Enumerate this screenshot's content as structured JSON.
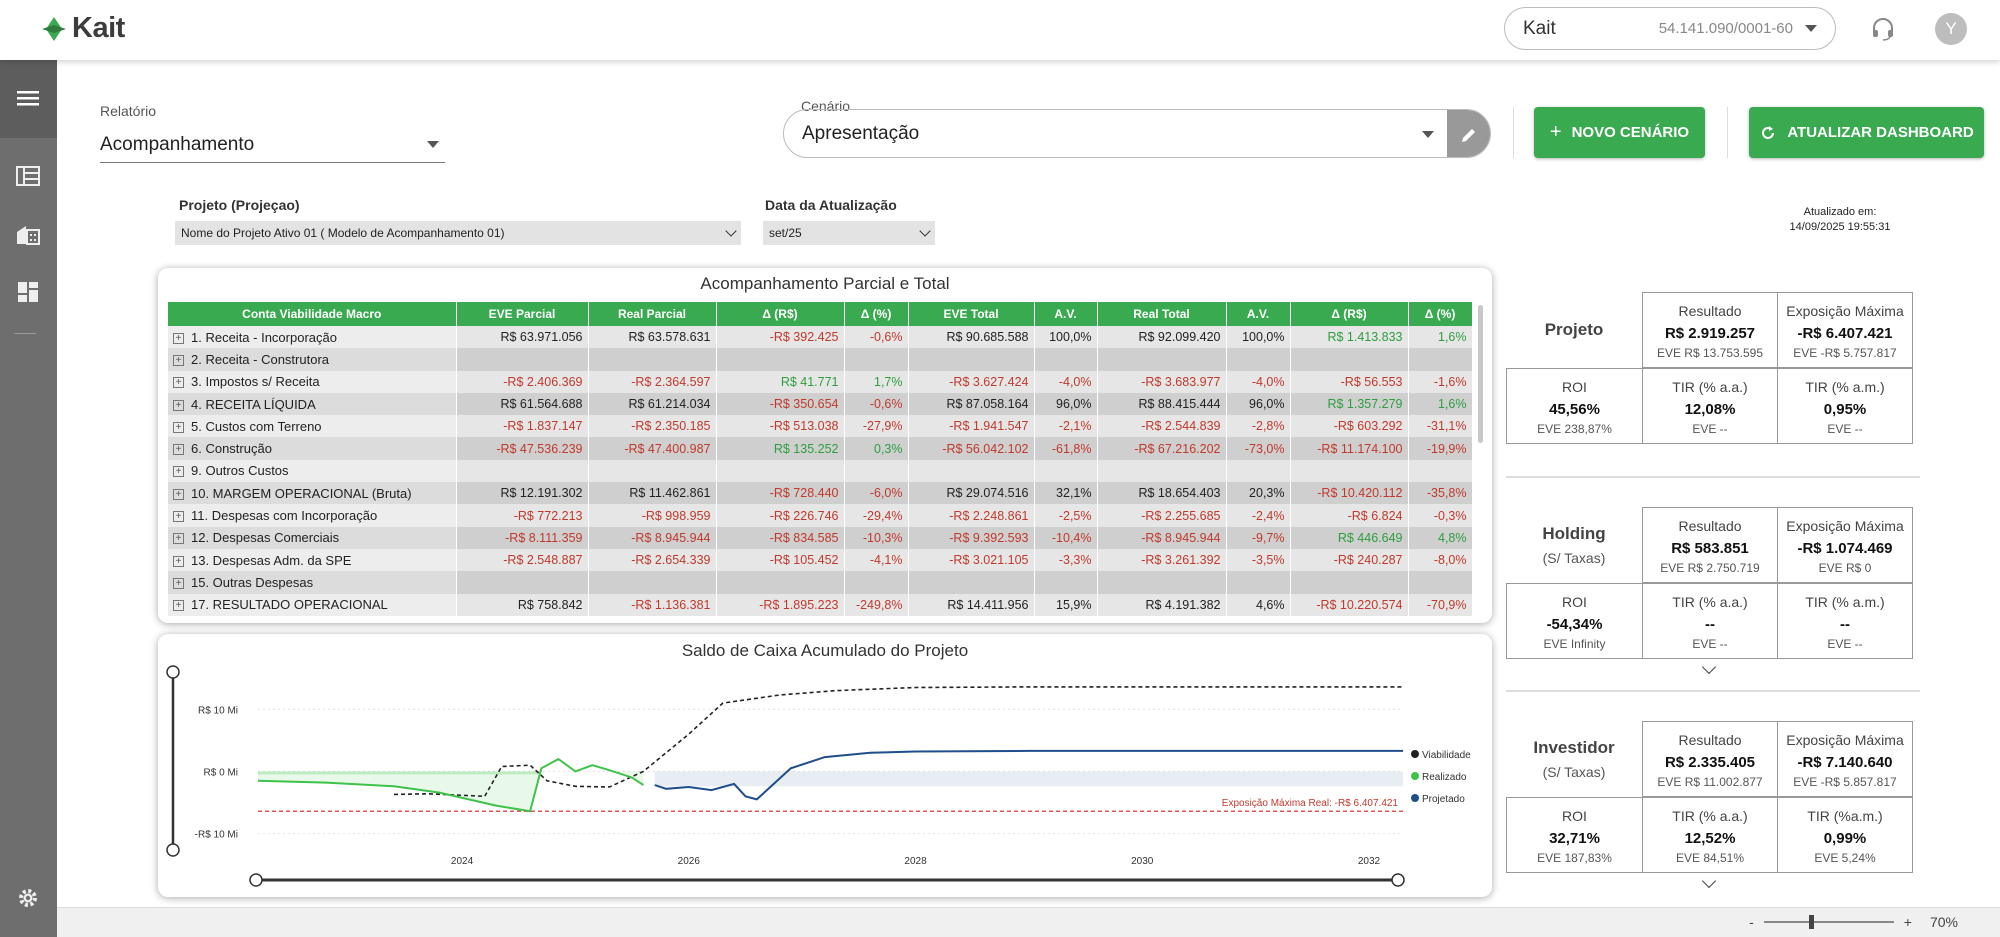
{
  "header": {
    "logo": "Kait",
    "company_name": "Kait",
    "company_cnpj": "54.141.090/0001-60",
    "avatar_initial": "Y"
  },
  "filters": {
    "report_label": "Relatório",
    "report_value": "Acompanhamento",
    "scenario_label": "Cenário",
    "scenario_value": "Apresentação",
    "new_scenario_button": "NOVO CENÁRIO",
    "refresh_button": "ATUALIZAR DASHBOARD",
    "project_label": "Projeto (Projeçao)",
    "project_value": "Nome do Projeto Ativo 01 ( Modelo de Acompanhamento 01)",
    "date_label": "Data da Atualização",
    "date_value": "set/25",
    "updated_label": "Atualizado em:",
    "updated_value": "14/09/2025 19:55:31"
  },
  "table": {
    "title": "Acompanhamento Parcial e Total",
    "columns": [
      "Conta Viabilidade Macro",
      "EVE Parcial",
      "Real Parcial",
      "Δ (R$)",
      "Δ (%)",
      "EVE Total",
      "A.V.",
      "Real Total",
      "A.V.",
      "Δ (R$)",
      "Δ (%)"
    ],
    "rows": [
      {
        "label": "1. Receita - Incorporação",
        "cells": [
          "R$ 63.971.056",
          "R$ 63.578.631",
          "-R$ 392.425",
          "-0,6%",
          "R$ 90.685.588",
          "100,0%",
          "R$ 92.099.420",
          "100,0%",
          "R$ 1.413.833",
          "1,6%"
        ]
      },
      {
        "label": "2. Receita - Construtora",
        "cells": [
          "",
          "",
          "",
          "",
          "",
          "",
          "",
          "",
          "",
          ""
        ]
      },
      {
        "label": "3. Impostos s/ Receita",
        "cells": [
          "-R$ 2.406.369",
          "-R$ 2.364.597",
          "R$ 41.771",
          "1,7%",
          "-R$ 3.627.424",
          "-4,0%",
          "-R$ 3.683.977",
          "-4,0%",
          "-R$ 56.553",
          "-1,6%"
        ]
      },
      {
        "label": "4. RECEITA LÍQUIDA",
        "cells": [
          "R$ 61.564.688",
          "R$ 61.214.034",
          "-R$ 350.654",
          "-0,6%",
          "R$ 87.058.164",
          "96,0%",
          "R$ 88.415.444",
          "96,0%",
          "R$ 1.357.279",
          "1,6%"
        ]
      },
      {
        "label": "5. Custos com Terreno",
        "cells": [
          "-R$ 1.837.147",
          "-R$ 2.350.185",
          "-R$ 513.038",
          "-27,9%",
          "-R$ 1.941.547",
          "-2,1%",
          "-R$ 2.544.839",
          "-2,8%",
          "-R$ 603.292",
          "-31,1%"
        ]
      },
      {
        "label": "6. Construção",
        "cells": [
          "-R$ 47.536.239",
          "-R$ 47.400.987",
          "R$ 135.252",
          "0,3%",
          "-R$ 56.042.102",
          "-61,8%",
          "-R$ 67.216.202",
          "-73,0%",
          "-R$ 11.174.100",
          "-19,9%"
        ]
      },
      {
        "label": "9. Outros Custos",
        "cells": [
          "",
          "",
          "",
          "",
          "",
          "",
          "",
          "",
          "",
          ""
        ]
      },
      {
        "label": "10. MARGEM OPERACIONAL (Bruta)",
        "cells": [
          "R$ 12.191.302",
          "R$ 11.462.861",
          "-R$ 728.440",
          "-6,0%",
          "R$ 29.074.516",
          "32,1%",
          "R$ 18.654.403",
          "20,3%",
          "-R$ 10.420.112",
          "-35,8%"
        ]
      },
      {
        "label": "11. Despesas com Incorporação",
        "cells": [
          "-R$ 772.213",
          "-R$ 998.959",
          "-R$ 226.746",
          "-29,4%",
          "-R$ 2.248.861",
          "-2,5%",
          "-R$ 2.255.685",
          "-2,4%",
          "-R$ 6.824",
          "-0,3%"
        ]
      },
      {
        "label": "12. Despesas Comerciais",
        "cells": [
          "-R$ 8.111.359",
          "-R$ 8.945.944",
          "-R$ 834.585",
          "-10,3%",
          "-R$ 9.392.593",
          "-10,4%",
          "-R$ 8.945.944",
          "-9,7%",
          "R$ 446.649",
          "4,8%"
        ]
      },
      {
        "label": "13. Despesas Adm. da SPE",
        "cells": [
          "-R$ 2.548.887",
          "-R$ 2.654.339",
          "-R$ 105.452",
          "-4,1%",
          "-R$ 3.021.105",
          "-3,3%",
          "-R$ 3.261.392",
          "-3,5%",
          "-R$ 240.287",
          "-8,0%"
        ]
      },
      {
        "label": "15. Outras Despesas",
        "cells": [
          "",
          "",
          "",
          "",
          "",
          "",
          "",
          "",
          "",
          ""
        ]
      },
      {
        "label": "17. RESULTADO OPERACIONAL",
        "cells": [
          "R$ 758.842",
          "-R$ 1.136.381",
          "-R$ 1.895.223",
          "-249,8%",
          "R$ 14.411.956",
          "15,9%",
          "R$ 4.191.382",
          "4,6%",
          "-R$ 10.220.574",
          "-70,9%"
        ]
      }
    ]
  },
  "chart_data": {
    "type": "line",
    "title": "Saldo de Caixa Acumulado do Projeto",
    "ytick_labels": [
      "R$ 10 Mi",
      "R$ 0 Mi",
      "-R$ 10 Mi"
    ],
    "yticks": [
      10,
      0,
      -10
    ],
    "ylim": [
      -12,
      16
    ],
    "xlim": [
      2022.2,
      2032.3
    ],
    "xticks": [
      2024,
      2026,
      2028,
      2030,
      2032
    ],
    "legend": [
      "Viabilidade",
      "Realizado",
      "Projetado"
    ],
    "legend_position": "right",
    "annotation": "Exposição Máxima Real: -R$ 6.407.421",
    "exposure_value": -6.4,
    "series": [
      {
        "name": "Viabilidade",
        "style": "dashed",
        "color": "#222222",
        "x": [
          2023.4,
          2023.7,
          2024.2,
          2024.35,
          2024.6,
          2024.75,
          2025.0,
          2025.3,
          2025.6,
          2026.0,
          2026.3,
          2026.8,
          2027.3,
          2028.0,
          2029.0,
          2030.0,
          2031.0,
          2032.3
        ],
        "y": [
          -3.7,
          -3.6,
          -4.0,
          0.8,
          1.0,
          -1.5,
          -2.4,
          -2.5,
          0.0,
          6.0,
          11.0,
          12.3,
          13.0,
          13.5,
          13.6,
          13.6,
          13.6,
          13.6
        ]
      },
      {
        "name": "Realizado",
        "style": "solid",
        "color": "#3ec24a",
        "x": [
          2022.2,
          2022.8,
          2023.4,
          2023.8,
          2024.3,
          2024.6,
          2024.7,
          2024.85,
          2025.0,
          2025.15,
          2025.3,
          2025.5,
          2025.6
        ],
        "y": [
          -1.5,
          -1.8,
          -2.4,
          -3.4,
          -5.5,
          -6.4,
          0.5,
          2.0,
          0.0,
          1.0,
          0.2,
          -1.0,
          -2.2
        ]
      },
      {
        "name": "Projetado",
        "style": "solid",
        "color": "#1f4e8c",
        "x": [
          2025.7,
          2025.8,
          2026.0,
          2026.2,
          2026.4,
          2026.5,
          2026.6,
          2026.9,
          2027.2,
          2027.6,
          2028.0,
          2029.0,
          2030.0,
          2031.0,
          2032.3
        ],
        "y": [
          -2.2,
          -2.8,
          -2.5,
          -3.0,
          -2.0,
          -4.0,
          -4.5,
          0.5,
          2.3,
          3.0,
          3.2,
          3.3,
          3.3,
          3.3,
          3.3
        ]
      }
    ]
  },
  "metrics": [
    {
      "title": "Projeto",
      "subtitle": "",
      "resultado_label": "Resultado",
      "resultado": "R$ 2.919.257",
      "resultado_eve": "EVE R$ 13.753.595",
      "exposicao_label": "Exposição Máxima",
      "exposicao": "-R$ 6.407.421",
      "exposicao_eve": "EVE -R$ 5.757.817",
      "roi_label": "ROI",
      "roi": "45,56%",
      "roi_eve": "EVE 238,87%",
      "tir_aa_label": "TIR (% a.a.)",
      "tir_aa": "12,08%",
      "tir_aa_eve": "EVE --",
      "tir_am_label": "TIR (% a.m.)",
      "tir_am": "0,95%",
      "tir_am_eve": "EVE --"
    },
    {
      "title": "Holding",
      "subtitle": "(S/ Taxas)",
      "resultado_label": "Resultado",
      "resultado": "R$ 583.851",
      "resultado_eve": "EVE R$ 2.750.719",
      "exposicao_label": "Exposição Máxima",
      "exposicao": "-R$ 1.074.469",
      "exposicao_eve": "EVE R$ 0",
      "roi_label": "ROI",
      "roi": "-54,34%",
      "roi_eve": "EVE Infinity",
      "tir_aa_label": "TIR (% a.a.)",
      "tir_aa": "--",
      "tir_aa_eve": "EVE --",
      "tir_am_label": "TIR (% a.m.)",
      "tir_am": "--",
      "tir_am_eve": "EVE --"
    },
    {
      "title": "Investidor",
      "subtitle": "(S/ Taxas)",
      "resultado_label": "Resultado",
      "resultado": "R$ 2.335.405",
      "resultado_eve": "EVE R$ 11.002.877",
      "exposicao_label": "Exposição Máxima",
      "exposicao": "-R$ 7.140.640",
      "exposicao_eve": "EVE -R$ 5.857.817",
      "roi_label": "ROI",
      "roi": "32,71%",
      "roi_eve": "EVE 187,83%",
      "tir_aa_label": "TIR (% a.a.)",
      "tir_aa": "12,52%",
      "tir_aa_eve": "EVE 84,51%",
      "tir_am_label": "TIR (%a.m.)",
      "tir_am": "0,99%",
      "tir_am_eve": "EVE 5,24%"
    }
  ],
  "zoom": {
    "minus": "-",
    "plus": "+",
    "level": "70%"
  },
  "colors": {
    "accent": "#3aaa51",
    "negative": "#c0392b",
    "positive": "#2e9e3e",
    "sidebar": "#6e6e6e"
  }
}
